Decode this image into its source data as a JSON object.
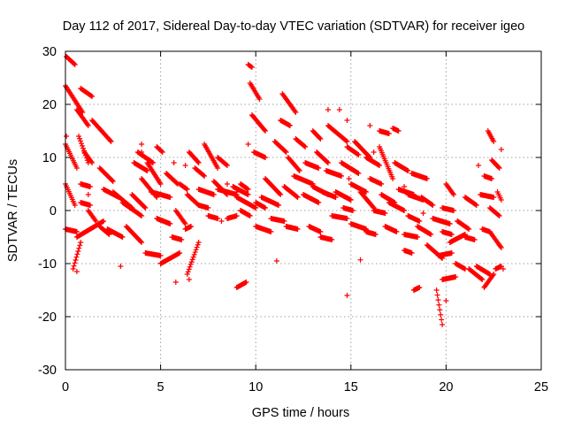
{
  "chart_data": {
    "type": "scatter",
    "title": "Day 112 of 2017, Sidereal Day-to-day VTEC variation (SDTVAR) for receiver igeo",
    "xlabel": "GPS time / hours",
    "ylabel": "SDTVAR / TECUs",
    "xlim": [
      0,
      25
    ],
    "ylim": [
      -30,
      30
    ],
    "x_ticks": [
      0,
      5,
      10,
      15,
      20,
      25
    ],
    "y_ticks": [
      -30,
      -20,
      -10,
      0,
      10,
      20,
      30
    ],
    "grid": true,
    "marker": "+",
    "series_color": "#ff0000",
    "tracks": [
      {
        "x": [
          0.05,
          0.5
        ],
        "y": [
          29.0,
          27.5
        ]
      },
      {
        "x": [
          0.0,
          0.9
        ],
        "y": [
          23.5,
          18.5
        ]
      },
      {
        "x": [
          0.0,
          0.6
        ],
        "y": [
          12.5,
          8.0
        ]
      },
      {
        "x": [
          0.0,
          0.5
        ],
        "y": [
          5.0,
          1.0
        ]
      },
      {
        "x": [
          0.0,
          0.6
        ],
        "y": [
          -3.5,
          -4.0
        ]
      },
      {
        "x": [
          0.4,
          0.8
        ],
        "y": [
          -11.0,
          -6.0
        ]
      },
      {
        "x": [
          0.6,
          2.0
        ],
        "y": [
          -5.0,
          -2.0
        ]
      },
      {
        "x": [
          0.6,
          1.2
        ],
        "y": [
          19.0,
          16.0
        ]
      },
      {
        "x": [
          0.7,
          1.2
        ],
        "y": [
          14.0,
          9.0
        ]
      },
      {
        "x": [
          0.8,
          1.3
        ],
        "y": [
          5.0,
          4.5
        ]
      },
      {
        "x": [
          0.8,
          1.3
        ],
        "y": [
          1.5,
          1.0
        ]
      },
      {
        "x": [
          0.8,
          1.4
        ],
        "y": [
          23.0,
          21.5
        ]
      },
      {
        "x": [
          1.0,
          1.4
        ],
        "y": [
          11.0,
          9.0
        ]
      },
      {
        "x": [
          1.2,
          1.6
        ],
        "y": [
          0.0,
          -2.0
        ]
      },
      {
        "x": [
          1.4,
          2.4
        ],
        "y": [
          17.0,
          13.0
        ]
      },
      {
        "x": [
          1.8,
          2.5
        ],
        "y": [
          8.0,
          5.5
        ]
      },
      {
        "x": [
          1.8,
          2.3
        ],
        "y": [
          -3.0,
          -4.5
        ]
      },
      {
        "x": [
          2.0,
          2.8
        ],
        "y": [
          4.0,
          2.5
        ]
      },
      {
        "x": [
          2.2,
          3.0
        ],
        "y": [
          -3.5,
          -5.0
        ]
      },
      {
        "x": [
          2.5,
          3.5
        ],
        "y": [
          3.5,
          0.5
        ]
      },
      {
        "x": [
          3.0,
          4.0
        ],
        "y": [
          1.5,
          -1.0
        ]
      },
      {
        "x": [
          3.2,
          4.0
        ],
        "y": [
          -3.0,
          -6.0
        ]
      },
      {
        "x": [
          3.5,
          4.2
        ],
        "y": [
          3.0,
          0.5
        ]
      },
      {
        "x": [
          3.6,
          4.3
        ],
        "y": [
          9.0,
          7.5
        ]
      },
      {
        "x": [
          3.8,
          4.6
        ],
        "y": [
          11.0,
          9.0
        ]
      },
      {
        "x": [
          4.0,
          4.8
        ],
        "y": [
          6.0,
          2.5
        ]
      },
      {
        "x": [
          4.2,
          5.0
        ],
        "y": [
          -8.0,
          -8.5
        ]
      },
      {
        "x": [
          4.3,
          5.0
        ],
        "y": [
          9.0,
          5.0
        ]
      },
      {
        "x": [
          4.5,
          5.5
        ],
        "y": [
          3.5,
          2.5
        ]
      },
      {
        "x": [
          4.8,
          5.5
        ],
        "y": [
          -1.5,
          -2.5
        ]
      },
      {
        "x": [
          5.0,
          6.0
        ],
        "y": [
          -10.0,
          -8.0
        ]
      },
      {
        "x": [
          4.8,
          5.1
        ],
        "y": [
          12.0,
          11.0
        ]
      },
      {
        "x": [
          5.3,
          5.9
        ],
        "y": [
          7.0,
          5.0
        ]
      },
      {
        "x": [
          5.6,
          6.1
        ],
        "y": [
          -5.0,
          -5.5
        ]
      },
      {
        "x": [
          5.8,
          6.3
        ],
        "y": [
          0.0,
          -2.5
        ]
      },
      {
        "x": [
          6.0,
          6.4
        ],
        "y": [
          5.0,
          4.0
        ]
      },
      {
        "x": [
          6.3,
          6.6
        ],
        "y": [
          -3.5,
          -3.0
        ]
      },
      {
        "x": [
          6.4,
          7.0
        ],
        "y": [
          -12.0,
          -6.0
        ]
      },
      {
        "x": [
          6.4,
          7.0
        ],
        "y": [
          3.0,
          1.0
        ]
      },
      {
        "x": [
          6.5,
          7.0
        ],
        "y": [
          11.0,
          9.0
        ]
      },
      {
        "x": [
          6.8,
          7.3
        ],
        "y": [
          8.0,
          6.5
        ]
      },
      {
        "x": [
          7.0,
          7.5
        ],
        "y": [
          1.0,
          0.5
        ]
      },
      {
        "x": [
          7.0,
          7.8
        ],
        "y": [
          4.0,
          3.0
        ]
      },
      {
        "x": [
          7.3,
          8.0
        ],
        "y": [
          12.5,
          8.0
        ]
      },
      {
        "x": [
          7.5,
          8.0
        ],
        "y": [
          -1.0,
          -1.5
        ]
      },
      {
        "x": [
          7.8,
          8.5
        ],
        "y": [
          5.5,
          3.0
        ]
      },
      {
        "x": [
          8.0,
          9.0
        ],
        "y": [
          4.0,
          3.0
        ]
      },
      {
        "x": [
          8.0,
          8.5
        ],
        "y": [
          10.0,
          8.5
        ]
      },
      {
        "x": [
          8.5,
          9.0
        ],
        "y": [
          -1.5,
          -1.0
        ]
      },
      {
        "x": [
          8.8,
          9.6
        ],
        "y": [
          4.5,
          3.0
        ]
      },
      {
        "x": [
          9.0,
          10.0
        ],
        "y": [
          2.5,
          0.5
        ]
      },
      {
        "x": [
          9.0,
          9.5
        ],
        "y": [
          -14.5,
          -13.5
        ]
      },
      {
        "x": [
          9.2,
          9.7
        ],
        "y": [
          0.0,
          -1.0
        ]
      },
      {
        "x": [
          9.2,
          9.6
        ],
        "y": [
          5.0,
          4.0
        ]
      },
      {
        "x": [
          9.6,
          9.8
        ],
        "y": [
          27.5,
          27.0
        ]
      },
      {
        "x": [
          9.7,
          10.2
        ],
        "y": [
          24.0,
          21.0
        ]
      },
      {
        "x": [
          9.8,
          10.5
        ],
        "y": [
          18.0,
          15.0
        ]
      },
      {
        "x": [
          9.9,
          10.5
        ],
        "y": [
          11.0,
          10.0
        ]
      },
      {
        "x": [
          10.0,
          10.8
        ],
        "y": [
          -3.0,
          -4.0
        ]
      },
      {
        "x": [
          10.0,
          10.5
        ],
        "y": [
          1.5,
          0.5
        ]
      },
      {
        "x": [
          10.3,
          11.2
        ],
        "y": [
          2.5,
          1.0
        ]
      },
      {
        "x": [
          10.5,
          11.3
        ],
        "y": [
          6.0,
          3.0
        ]
      },
      {
        "x": [
          10.8,
          11.5
        ],
        "y": [
          -1.5,
          -2.0
        ]
      },
      {
        "x": [
          11.0,
          11.6
        ],
        "y": [
          13.0,
          11.0
        ]
      },
      {
        "x": [
          11.3,
          11.8
        ],
        "y": [
          17.0,
          16.0
        ]
      },
      {
        "x": [
          11.4,
          12.1
        ],
        "y": [
          22.0,
          18.5
        ]
      },
      {
        "x": [
          11.5,
          12.2
        ],
        "y": [
          4.5,
          2.5
        ]
      },
      {
        "x": [
          11.6,
          12.2
        ],
        "y": [
          -3.0,
          -3.5
        ]
      },
      {
        "x": [
          11.7,
          12.3
        ],
        "y": [
          10.0,
          7.5
        ]
      },
      {
        "x": [
          12.0,
          13.0
        ],
        "y": [
          6.5,
          5.0
        ]
      },
      {
        "x": [
          12.1,
          12.6
        ],
        "y": [
          13.5,
          12.0
        ]
      },
      {
        "x": [
          12.5,
          13.3
        ],
        "y": [
          3.0,
          1.5
        ]
      },
      {
        "x": [
          12.6,
          13.3
        ],
        "y": [
          9.0,
          8.0
        ]
      },
      {
        "x": [
          12.8,
          13.4
        ],
        "y": [
          -3.0,
          -4.0
        ]
      },
      {
        "x": [
          13.0,
          13.4
        ],
        "y": [
          15.0,
          13.5
        ]
      },
      {
        "x": [
          13.0,
          13.8
        ],
        "y": [
          4.5,
          3.0
        ]
      },
      {
        "x": [
          13.2,
          13.8
        ],
        "y": [
          11.0,
          9.0
        ]
      },
      {
        "x": [
          13.4,
          14.0
        ],
        "y": [
          -5.0,
          -5.5
        ]
      },
      {
        "x": [
          13.5,
          14.2
        ],
        "y": [
          3.5,
          2.5
        ]
      },
      {
        "x": [
          13.7,
          14.5
        ],
        "y": [
          7.5,
          6.5
        ]
      },
      {
        "x": [
          13.8,
          14.8
        ],
        "y": [
          16.0,
          13.0
        ]
      },
      {
        "x": [
          14.0,
          14.8
        ],
        "y": [
          -1.0,
          -1.5
        ]
      },
      {
        "x": [
          14.2,
          15.0
        ],
        "y": [
          3.5,
          2.0
        ]
      },
      {
        "x": [
          14.5,
          15.4
        ],
        "y": [
          9.0,
          7.0
        ]
      },
      {
        "x": [
          14.6,
          15.1
        ],
        "y": [
          0.5,
          0.0
        ]
      },
      {
        "x": [
          14.8,
          15.4
        ],
        "y": [
          12.0,
          10.5
        ]
      },
      {
        "x": [
          15.0,
          15.8
        ],
        "y": [
          -2.5,
          -3.5
        ]
      },
      {
        "x": [
          15.0,
          15.8
        ],
        "y": [
          5.0,
          3.5
        ]
      },
      {
        "x": [
          15.2,
          16.0
        ],
        "y": [
          13.0,
          10.0
        ]
      },
      {
        "x": [
          15.5,
          16.2
        ],
        "y": [
          3.5,
          0.5
        ]
      },
      {
        "x": [
          15.8,
          16.3
        ],
        "y": [
          -4.0,
          -4.5
        ]
      },
      {
        "x": [
          15.8,
          16.5
        ],
        "y": [
          10.0,
          8.5
        ]
      },
      {
        "x": [
          16.0,
          16.6
        ],
        "y": [
          6.0,
          5.0
        ]
      },
      {
        "x": [
          16.2,
          16.8
        ],
        "y": [
          0.0,
          -0.5
        ]
      },
      {
        "x": [
          16.5,
          17.0
        ],
        "y": [
          15.0,
          14.5
        ]
      },
      {
        "x": [
          16.5,
          17.2
        ],
        "y": [
          12.0,
          6.0
        ]
      },
      {
        "x": [
          16.6,
          17.3
        ],
        "y": [
          3.0,
          1.5
        ]
      },
      {
        "x": [
          16.8,
          17.4
        ],
        "y": [
          -3.0,
          -4.0
        ]
      },
      {
        "x": [
          17.0,
          17.8
        ],
        "y": [
          1.5,
          0.0
        ]
      },
      {
        "x": [
          17.2,
          17.5
        ],
        "y": [
          15.5,
          15.0
        ]
      },
      {
        "x": [
          17.3,
          18.0
        ],
        "y": [
          9.0,
          7.5
        ]
      },
      {
        "x": [
          17.5,
          18.3
        ],
        "y": [
          4.0,
          3.0
        ]
      },
      {
        "x": [
          17.8,
          18.5
        ],
        "y": [
          -4.5,
          -5.0
        ]
      },
      {
        "x": [
          17.8,
          18.2
        ],
        "y": [
          -7.5,
          -8.0
        ]
      },
      {
        "x": [
          18.0,
          18.6
        ],
        "y": [
          -1.0,
          -2.0
        ]
      },
      {
        "x": [
          18.0,
          18.8
        ],
        "y": [
          3.0,
          2.0
        ]
      },
      {
        "x": [
          18.2,
          19.0
        ],
        "y": [
          7.0,
          6.0
        ]
      },
      {
        "x": [
          18.3,
          18.6
        ],
        "y": [
          -15.0,
          -14.5
        ]
      },
      {
        "x": [
          18.5,
          19.2
        ],
        "y": [
          -3.0,
          -4.5
        ]
      },
      {
        "x": [
          18.7,
          19.3
        ],
        "y": [
          2.5,
          1.0
        ]
      },
      {
        "x": [
          19.0,
          19.8
        ],
        "y": [
          -6.5,
          -9.0
        ]
      },
      {
        "x": [
          19.3,
          20.2
        ],
        "y": [
          -1.5,
          -2.5
        ]
      },
      {
        "x": [
          19.5,
          19.8
        ],
        "y": [
          -15.0,
          -21.5
        ]
      },
      {
        "x": [
          19.6,
          20.3
        ],
        "y": [
          -8.5,
          -8.0
        ]
      },
      {
        "x": [
          19.8,
          20.3
        ],
        "y": [
          -4.0,
          -4.5
        ]
      },
      {
        "x": [
          19.8,
          20.4
        ],
        "y": [
          0.5,
          0.0
        ]
      },
      {
        "x": [
          19.8,
          20.5
        ],
        "y": [
          -13.0,
          -12.5
        ]
      },
      {
        "x": [
          20.0,
          20.4
        ],
        "y": [
          5.0,
          3.0
        ]
      },
      {
        "x": [
          20.2,
          21.0
        ],
        "y": [
          -6.0,
          -4.5
        ]
      },
      {
        "x": [
          20.5,
          21.0
        ],
        "y": [
          -10.0,
          -11.0
        ]
      },
      {
        "x": [
          20.6,
          21.2
        ],
        "y": [
          -2.0,
          -3.5
        ]
      },
      {
        "x": [
          21.0,
          21.5
        ],
        "y": [
          -5.0,
          -5.5
        ]
      },
      {
        "x": [
          21.0,
          21.6
        ],
        "y": [
          2.5,
          1.0
        ]
      },
      {
        "x": [
          21.2,
          21.9
        ],
        "y": [
          -11.0,
          -13.0
        ]
      },
      {
        "x": [
          21.6,
          22.3
        ],
        "y": [
          -10.5,
          -12.0
        ]
      },
      {
        "x": [
          21.8,
          22.5
        ],
        "y": [
          3.0,
          2.5
        ]
      },
      {
        "x": [
          21.9,
          22.3
        ],
        "y": [
          -3.5,
          -4.0
        ]
      },
      {
        "x": [
          22.0,
          22.5
        ],
        "y": [
          -14.5,
          -12.0
        ]
      },
      {
        "x": [
          22.0,
          22.4
        ],
        "y": [
          6.5,
          6.0
        ]
      },
      {
        "x": [
          22.2,
          22.5
        ],
        "y": [
          15.0,
          13.0
        ]
      },
      {
        "x": [
          22.3,
          22.9
        ],
        "y": [
          -4.0,
          -7.0
        ]
      },
      {
        "x": [
          22.3,
          22.8
        ],
        "y": [
          0.5,
          -1.0
        ]
      },
      {
        "x": [
          22.4,
          22.8
        ],
        "y": [
          9.5,
          8.0
        ]
      },
      {
        "x": [
          22.6,
          22.9
        ],
        "y": [
          -11.0,
          -10.5
        ]
      },
      {
        "x": [
          22.7,
          22.9
        ],
        "y": [
          3.5,
          2.0
        ]
      }
    ],
    "points": [
      {
        "x": 0.05,
        "y": 14.0
      },
      {
        "x": 0.6,
        "y": -11.5
      },
      {
        "x": 1.2,
        "y": 3.0
      },
      {
        "x": 2.9,
        "y": -10.5
      },
      {
        "x": 4.0,
        "y": 12.5
      },
      {
        "x": 4.0,
        "y": 11.0
      },
      {
        "x": 5.7,
        "y": 9.0
      },
      {
        "x": 6.3,
        "y": 8.5
      },
      {
        "x": 5.8,
        "y": -13.5
      },
      {
        "x": 6.5,
        "y": -13.0
      },
      {
        "x": 8.5,
        "y": 5.0
      },
      {
        "x": 9.0,
        "y": 3.5
      },
      {
        "x": 9.6,
        "y": 12.5
      },
      {
        "x": 8.2,
        "y": -2.0
      },
      {
        "x": 11.1,
        "y": -9.5
      },
      {
        "x": 13.8,
        "y": 19.0
      },
      {
        "x": 14.4,
        "y": 19.0
      },
      {
        "x": 14.8,
        "y": 17.0
      },
      {
        "x": 14.8,
        "y": -16.0
      },
      {
        "x": 15.5,
        "y": -9.3
      },
      {
        "x": 14.9,
        "y": 6.0
      },
      {
        "x": 16.2,
        "y": 11.0
      },
      {
        "x": 17.8,
        "y": 4.5
      },
      {
        "x": 18.8,
        "y": -0.5
      },
      {
        "x": 20.0,
        "y": -17.0
      },
      {
        "x": 20.6,
        "y": -2.0
      },
      {
        "x": 21.7,
        "y": 8.5
      },
      {
        "x": 22.9,
        "y": 11.5
      },
      {
        "x": 23.0,
        "y": -11.0
      },
      {
        "x": 16.0,
        "y": 16.0
      }
    ]
  }
}
